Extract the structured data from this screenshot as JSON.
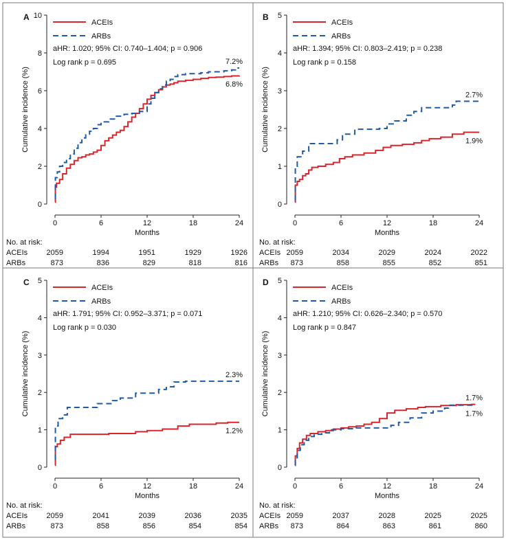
{
  "colors": {
    "acei": "#d7262b",
    "arb": "#1f5aa6",
    "frame": "#777777",
    "axis": "#222222"
  },
  "legend": {
    "acei_label": "ACEIs",
    "arb_label": "ARBs"
  },
  "common": {
    "xlabel": "Months",
    "ylabel": "Cumulative incidence (%)",
    "risk_title": "No. at risk:",
    "risk_row_labels": [
      "ACEIs",
      "ARBs"
    ]
  },
  "chart_data": [
    {
      "panel": "A",
      "type": "line",
      "title": "",
      "xlabel": "Months",
      "ylabel": "Cumulative incidence (%)",
      "xlim": [
        0,
        24
      ],
      "ylim": [
        0,
        10
      ],
      "xticks": [
        0,
        6,
        12,
        18,
        24
      ],
      "yticks": [
        0,
        2,
        4,
        6,
        8,
        10
      ],
      "stats": [
        "aHR: 1.020; 95% CI: 0.740–1.404; p = 0.906",
        "Log rank p = 0.695"
      ],
      "series": [
        {
          "name": "ACEIs",
          "style": "solid",
          "end_label": "6.8%",
          "x": [
            0,
            0.05,
            0.2,
            0.6,
            1,
            1.5,
            2,
            2.5,
            3,
            3.5,
            4,
            4.5,
            5,
            5.5,
            6,
            6.5,
            7,
            7.5,
            8,
            8.5,
            9,
            9.5,
            10,
            10.5,
            11,
            11.5,
            12,
            12.5,
            13,
            13.5,
            14,
            14.5,
            15,
            15.5,
            16,
            17,
            18,
            19,
            20,
            21,
            22,
            23,
            24
          ],
          "y": [
            0.1,
            0.9,
            1.1,
            1.3,
            1.6,
            1.9,
            2.1,
            2.3,
            2.45,
            2.5,
            2.6,
            2.65,
            2.75,
            2.85,
            3.1,
            3.35,
            3.5,
            3.65,
            3.8,
            3.9,
            4.1,
            4.35,
            4.6,
            4.8,
            5.05,
            5.3,
            5.55,
            5.75,
            5.9,
            6.05,
            6.2,
            6.3,
            6.35,
            6.42,
            6.5,
            6.55,
            6.6,
            6.65,
            6.7,
            6.72,
            6.75,
            6.78,
            6.8
          ]
        },
        {
          "name": "ARBs",
          "style": "dashed",
          "end_label": "7.2%",
          "x": [
            0,
            0.05,
            0.3,
            0.6,
            1,
            1.5,
            2,
            2.5,
            3,
            3.5,
            4,
            4.5,
            5,
            5.5,
            6,
            7,
            8,
            9,
            10,
            11,
            12,
            12.5,
            13,
            13.5,
            14,
            14.5,
            15,
            15.5,
            16,
            17,
            18,
            19,
            20,
            21,
            22,
            23,
            23.5,
            24
          ],
          "y": [
            0.3,
            1.4,
            1.7,
            2.0,
            2.2,
            2.4,
            2.65,
            2.95,
            3.25,
            3.5,
            3.7,
            3.85,
            4.0,
            4.2,
            4.35,
            4.5,
            4.65,
            4.75,
            4.8,
            4.9,
            5.3,
            5.6,
            5.9,
            6.1,
            6.3,
            6.5,
            6.6,
            6.75,
            6.85,
            6.9,
            6.9,
            6.95,
            7.0,
            7.0,
            7.05,
            7.1,
            7.2,
            7.2
          ]
        }
      ],
      "risk_x": [
        0,
        6,
        12,
        18,
        24
      ],
      "risk": {
        "ACEIs": [
          2059,
          1994,
          1951,
          1929,
          1926
        ],
        "ARBs": [
          873,
          836,
          829,
          818,
          816
        ]
      }
    },
    {
      "panel": "B",
      "type": "line",
      "title": "",
      "xlabel": "Months",
      "ylabel": "Cumulative incidence (%)",
      "xlim": [
        0,
        24
      ],
      "ylim": [
        0,
        5
      ],
      "xticks": [
        0,
        6,
        12,
        18,
        24
      ],
      "yticks": [
        0,
        1,
        2,
        3,
        4,
        5
      ],
      "stats": [
        "aHR: 1.394; 95% CI: 0.803–2.419; p = 0.238",
        "Log rank p = 0.158"
      ],
      "series": [
        {
          "name": "ACEIs",
          "style": "solid",
          "end_label": "1.9%",
          "x": [
            0,
            0.05,
            0.3,
            0.6,
            1,
            1.4,
            1.8,
            2.2,
            3,
            4,
            5,
            5.8,
            6.5,
            7.5,
            9,
            10.5,
            11.5,
            12.5,
            14,
            15.5,
            16.5,
            17.5,
            19,
            20.5,
            22,
            24
          ],
          "y": [
            0.05,
            0.5,
            0.6,
            0.65,
            0.75,
            0.8,
            0.9,
            0.97,
            1.0,
            1.05,
            1.1,
            1.2,
            1.25,
            1.3,
            1.35,
            1.42,
            1.5,
            1.55,
            1.58,
            1.62,
            1.68,
            1.73,
            1.77,
            1.85,
            1.9,
            1.9
          ]
        },
        {
          "name": "ARBs",
          "style": "dashed",
          "end_label": "2.7%",
          "x": [
            0,
            0.05,
            0.3,
            1,
            1.8,
            5.5,
            6.2,
            7.8,
            9.5,
            11,
            12,
            13,
            14.5,
            15.5,
            16.5,
            18,
            19,
            20.5,
            21,
            24
          ],
          "y": [
            0.1,
            1.0,
            1.25,
            1.4,
            1.6,
            1.7,
            1.85,
            1.98,
            1.98,
            2.0,
            2.12,
            2.2,
            2.35,
            2.45,
            2.55,
            2.55,
            2.55,
            2.62,
            2.72,
            2.72
          ]
        }
      ],
      "risk_x": [
        0,
        6,
        12,
        18,
        24
      ],
      "risk": {
        "ACEIs": [
          2059,
          2034,
          2029,
          2024,
          2022
        ],
        "ARBs": [
          873,
          858,
          855,
          852,
          851
        ]
      }
    },
    {
      "panel": "C",
      "type": "line",
      "title": "",
      "xlabel": "Months",
      "ylabel": "Cumulative incidence (%)",
      "xlim": [
        0,
        24
      ],
      "ylim": [
        0,
        5
      ],
      "xticks": [
        0,
        6,
        12,
        18,
        24
      ],
      "yticks": [
        0,
        1,
        2,
        3,
        4,
        5
      ],
      "stats": [
        "aHR: 1.791; 95% CI: 0.952–3.371; p = 0.071",
        "Log rank p = 0.030"
      ],
      "series": [
        {
          "name": "ACEIs",
          "style": "solid",
          "end_label": "1.2%",
          "x": [
            0,
            0.05,
            0.3,
            0.7,
            1.2,
            2,
            4,
            7,
            10.5,
            12,
            14,
            16,
            17.5,
            21,
            22.5,
            24
          ],
          "y": [
            0.05,
            0.55,
            0.62,
            0.72,
            0.8,
            0.88,
            0.88,
            0.9,
            0.95,
            0.98,
            1.02,
            1.1,
            1.15,
            1.18,
            1.2,
            1.2
          ]
        },
        {
          "name": "ARBs",
          "style": "dashed",
          "end_label": "2.3%",
          "x": [
            0,
            0.05,
            0.4,
            1,
            1.6,
            5.5,
            7.5,
            8.5,
            10.5,
            13.5,
            14.5,
            15.5,
            17,
            24
          ],
          "y": [
            0.2,
            1.1,
            1.3,
            1.4,
            1.6,
            1.7,
            1.78,
            1.85,
            1.98,
            2.08,
            2.15,
            2.28,
            2.3,
            2.3
          ]
        }
      ],
      "risk_x": [
        0,
        6,
        12,
        18,
        24
      ],
      "risk": {
        "ACEIs": [
          2059,
          2041,
          2039,
          2036,
          2035
        ],
        "ARBs": [
          873,
          858,
          856,
          854,
          854
        ]
      }
    },
    {
      "panel": "D",
      "type": "line",
      "title": "",
      "xlabel": "Months",
      "ylabel": "Cumulative incidence (%)",
      "xlim": [
        0,
        24
      ],
      "ylim": [
        0,
        5
      ],
      "xticks": [
        0,
        6,
        12,
        18,
        24
      ],
      "yticks": [
        0,
        1,
        2,
        3,
        4,
        5
      ],
      "stats": [
        "aHR: 1.210; 95% CI: 0.626–2.340; p = 0.570",
        "Log rank p = 0.847"
      ],
      "series": [
        {
          "name": "ACEIs",
          "style": "solid",
          "end_label": "1.7%",
          "x": [
            0,
            0.05,
            0.3,
            0.6,
            1,
            1.5,
            2,
            3,
            4,
            5,
            6,
            7,
            8,
            9,
            10,
            11,
            12,
            13,
            14.5,
            16,
            17,
            19,
            21,
            23,
            23.5
          ],
          "y": [
            0.05,
            0.3,
            0.5,
            0.65,
            0.75,
            0.85,
            0.9,
            0.95,
            0.98,
            1.02,
            1.05,
            1.08,
            1.1,
            1.15,
            1.2,
            1.3,
            1.45,
            1.52,
            1.56,
            1.6,
            1.62,
            1.65,
            1.67,
            1.68,
            1.68
          ]
        },
        {
          "name": "ARBs",
          "style": "dashed",
          "end_label": "1.7%",
          "x": [
            0,
            0.05,
            0.3,
            0.7,
            1.2,
            1.8,
            2.5,
            3.5,
            4.5,
            6,
            8,
            10,
            11.5,
            12.5,
            13.5,
            15,
            16.5,
            18,
            19.5,
            20,
            23.5
          ],
          "y": [
            0.05,
            0.25,
            0.45,
            0.6,
            0.72,
            0.82,
            0.88,
            0.92,
            1.0,
            1.03,
            1.05,
            1.05,
            1.05,
            1.12,
            1.2,
            1.32,
            1.45,
            1.5,
            1.58,
            1.66,
            1.66
          ]
        }
      ],
      "risk_x": [
        0,
        6,
        12,
        18,
        24
      ],
      "risk": {
        "ACEIs": [
          2059,
          2037,
          2028,
          2025,
          2025
        ],
        "ARBs": [
          873,
          864,
          863,
          861,
          860
        ]
      }
    }
  ]
}
